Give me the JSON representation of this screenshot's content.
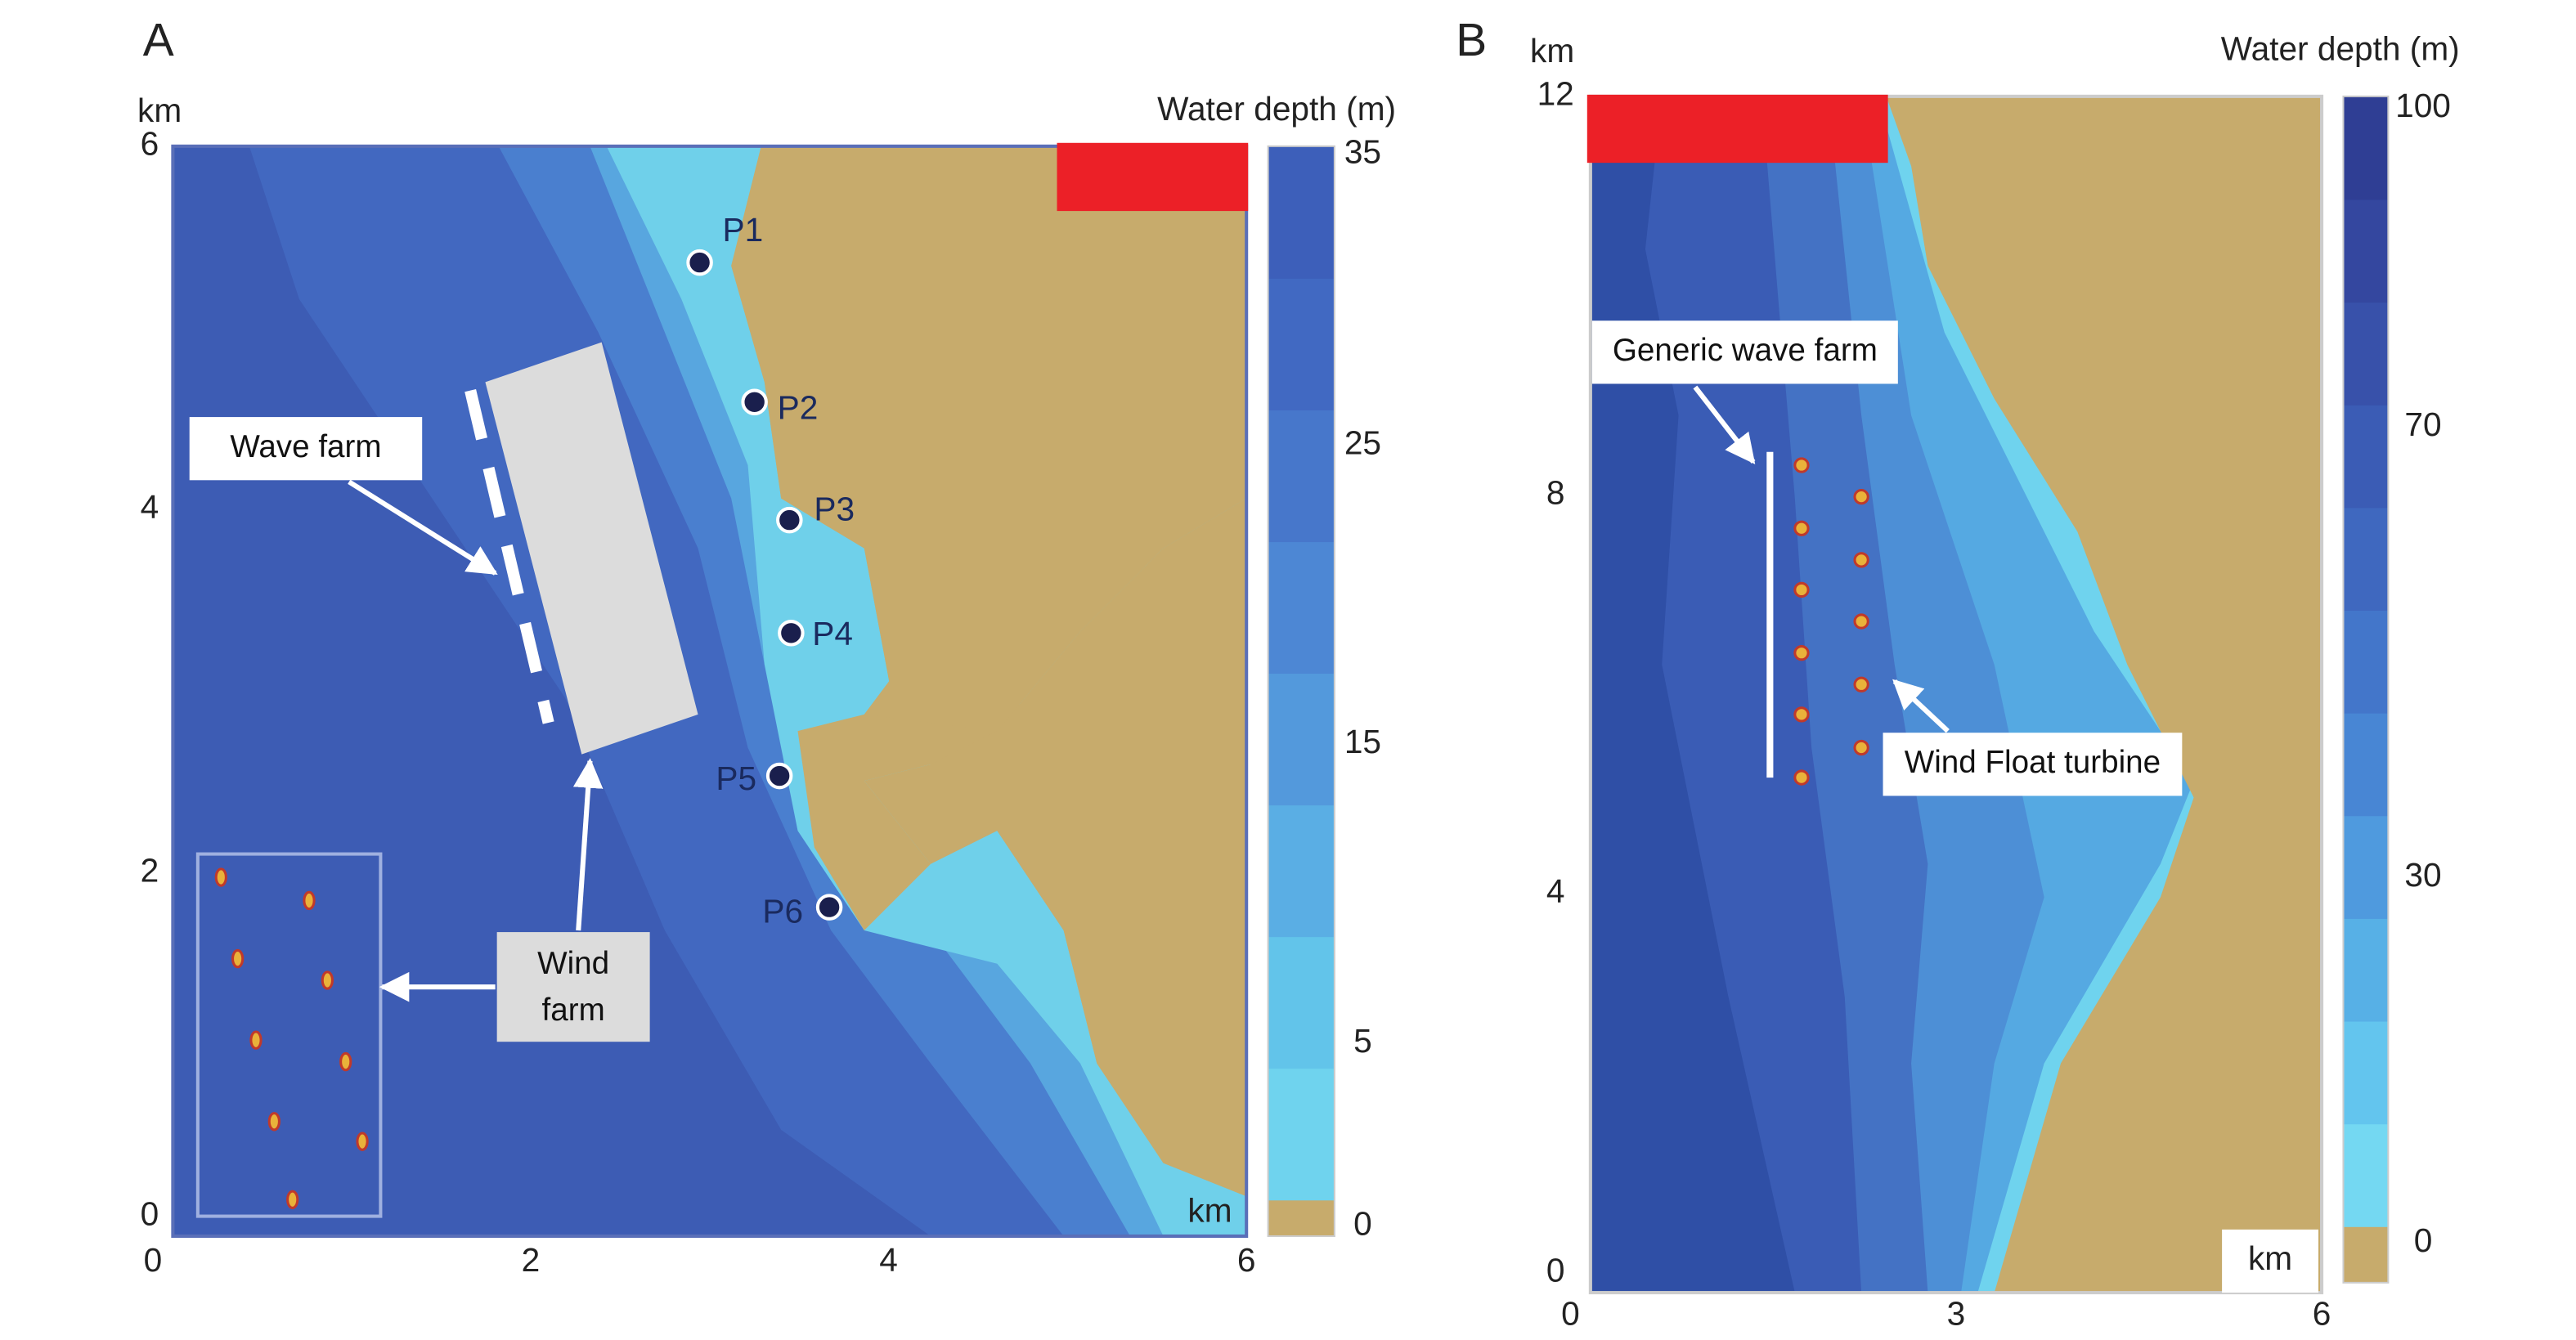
{
  "panels": [
    {
      "label": "A",
      "unit": "km",
      "corner_unit": "km",
      "xticks": [
        0,
        2,
        4,
        6
      ],
      "yticks": [
        0,
        2,
        4,
        6
      ],
      "colorbar": {
        "title": "Water depth (m)",
        "ticks": [
          0,
          5,
          15,
          25,
          35
        ]
      },
      "points": [
        "P1",
        "P2",
        "P3",
        "P4",
        "P5",
        "P6"
      ],
      "wave_farm": "Wave farm",
      "wind_farm": [
        "Wind",
        "farm"
      ]
    },
    {
      "label": "B",
      "unit": "km",
      "corner_unit": "km",
      "xticks": [
        0,
        3,
        6
      ],
      "yticks": [
        0,
        4,
        8,
        12
      ],
      "colorbar": {
        "title": "Water depth (m)",
        "ticks": [
          0,
          30,
          70,
          100
        ]
      },
      "wave_farm": "Generic wave farm",
      "turbine": "Wind Float turbine"
    }
  ]
}
